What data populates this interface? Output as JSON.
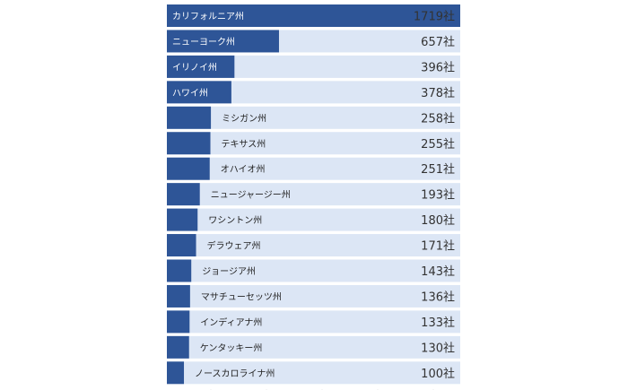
{
  "chart_data": {
    "type": "bar",
    "orientation": "horizontal",
    "categories": [
      "カリフォルニア州",
      "ニューヨーク州",
      "イリノイ州",
      "ハワイ州",
      "ミシガン州",
      "テキサス州",
      "オハイオ州",
      "ニュージャージー州",
      "ワシントン州",
      "デラウェア州",
      "ジョージア州",
      "マサチューセッツ州",
      "インディアナ州",
      "ケンタッキー州",
      "ノースカロライナ州"
    ],
    "values": [
      1719,
      657,
      396,
      378,
      258,
      255,
      251,
      193,
      180,
      171,
      143,
      136,
      133,
      130,
      100
    ],
    "value_labels": [
      "1719社",
      "657社",
      "396社",
      "378社",
      "258社",
      "255社",
      "251社",
      "193社",
      "180社",
      "171社",
      "143社",
      "136社",
      "133社",
      "130社",
      "100社"
    ],
    "title": "",
    "xlabel": "",
    "ylabel": "",
    "grid": false,
    "legend": "none"
  },
  "colors": {
    "bar": "#2e5597",
    "track": "#dce6f5",
    "label_on_bar": "#ffffff",
    "label_outside": "#222222",
    "value_text": "#333333",
    "axis_tick": "#b5b5b5"
  }
}
